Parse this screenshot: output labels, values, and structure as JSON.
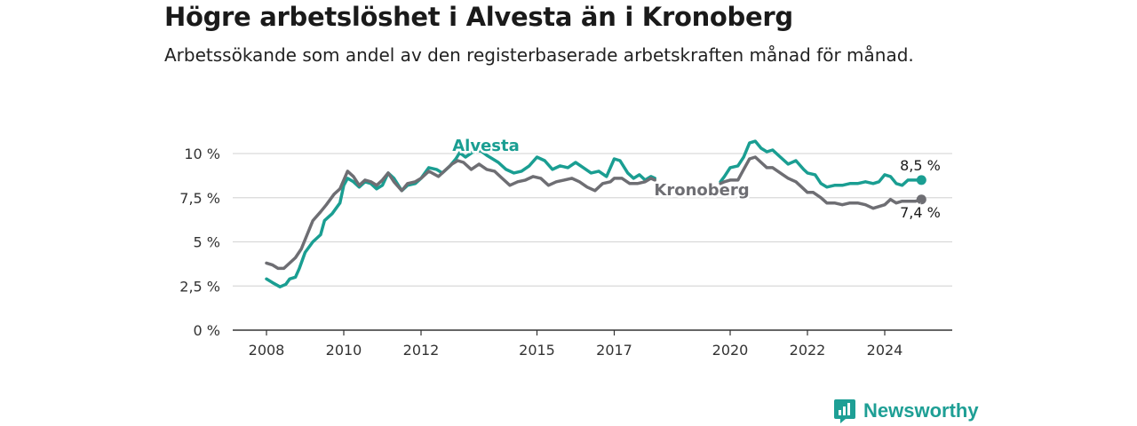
{
  "title": "Högre arbetslöshet i Alvesta än i Kronoberg",
  "subtitle": "Arbetssökande som andel av den registerbaserade arbetskraften månad för månad.",
  "brand": "Newsworthy",
  "chart_data": {
    "type": "line",
    "xlim": [
      2007.4,
      2025.6
    ],
    "ylim": [
      0,
      10
    ],
    "y_ticks": [
      0,
      2.5,
      5,
      7.5,
      10
    ],
    "y_tick_labels": [
      "0 %",
      "2,5 %",
      "5 %",
      "7,5 %",
      "10 %"
    ],
    "x_ticks": [
      2008,
      2010,
      2012,
      2015,
      2017,
      2020,
      2022,
      2024
    ],
    "x_tick_labels": [
      "2008",
      "2010",
      "2012",
      "2015",
      "2017",
      "2020",
      "2022",
      "2024"
    ],
    "grid": "horizontal",
    "series": [
      {
        "name": "Alvesta",
        "color": "#1a9e92",
        "end_label": "8,5 %",
        "points": [
          [
            2008.0,
            2.9
          ],
          [
            2008.15,
            2.7
          ],
          [
            2008.35,
            2.45
          ],
          [
            2008.5,
            2.6
          ],
          [
            2008.6,
            2.9
          ],
          [
            2008.75,
            3.0
          ],
          [
            2008.85,
            3.5
          ],
          [
            2009.0,
            4.4
          ],
          [
            2009.2,
            5.0
          ],
          [
            2009.4,
            5.4
          ],
          [
            2009.5,
            6.2
          ],
          [
            2009.7,
            6.6
          ],
          [
            2009.9,
            7.2
          ],
          [
            2010.0,
            8.2
          ],
          [
            2010.1,
            8.6
          ],
          [
            2010.25,
            8.4
          ],
          [
            2010.4,
            8.1
          ],
          [
            2010.55,
            8.4
          ],
          [
            2010.7,
            8.3
          ],
          [
            2010.85,
            8.0
          ],
          [
            2011.0,
            8.2
          ],
          [
            2011.15,
            8.9
          ],
          [
            2011.3,
            8.6
          ],
          [
            2011.5,
            7.9
          ],
          [
            2011.65,
            8.2
          ],
          [
            2011.85,
            8.3
          ],
          [
            2012.0,
            8.6
          ],
          [
            2012.2,
            9.2
          ],
          [
            2012.4,
            9.1
          ],
          [
            2012.55,
            8.9
          ],
          [
            2012.75,
            9.3
          ],
          [
            2012.9,
            9.7
          ],
          [
            2013.0,
            10.05
          ],
          [
            2013.15,
            9.8
          ],
          [
            2013.35,
            10.1
          ],
          [
            2013.55,
            10.15
          ],
          [
            2013.7,
            9.9
          ],
          [
            2013.85,
            9.7
          ],
          [
            2014.0,
            9.5
          ],
          [
            2014.2,
            9.1
          ],
          [
            2014.4,
            8.9
          ],
          [
            2014.6,
            9.0
          ],
          [
            2014.8,
            9.3
          ],
          [
            2015.0,
            9.8
          ],
          [
            2015.2,
            9.6
          ],
          [
            2015.4,
            9.1
          ],
          [
            2015.6,
            9.3
          ],
          [
            2015.8,
            9.2
          ],
          [
            2016.0,
            9.5
          ],
          [
            2016.2,
            9.2
          ],
          [
            2016.4,
            8.9
          ],
          [
            2016.6,
            9.0
          ],
          [
            2016.8,
            8.7
          ],
          [
            2017.0,
            9.7
          ],
          [
            2017.15,
            9.6
          ],
          [
            2017.35,
            8.9
          ],
          [
            2017.5,
            8.6
          ],
          [
            2017.65,
            8.8
          ],
          [
            2017.8,
            8.5
          ],
          [
            2017.95,
            8.7
          ],
          [
            2018.05,
            8.6
          ],
          null,
          [
            2019.75,
            8.4
          ],
          [
            2019.85,
            8.7
          ],
          [
            2020.0,
            9.2
          ],
          [
            2020.2,
            9.3
          ],
          [
            2020.35,
            9.8
          ],
          [
            2020.5,
            10.6
          ],
          [
            2020.65,
            10.7
          ],
          [
            2020.8,
            10.3
          ],
          [
            2020.95,
            10.1
          ],
          [
            2021.1,
            10.2
          ],
          [
            2021.3,
            9.8
          ],
          [
            2021.5,
            9.4
          ],
          [
            2021.7,
            9.6
          ],
          [
            2021.9,
            9.1
          ],
          [
            2022.0,
            8.9
          ],
          [
            2022.2,
            8.8
          ],
          [
            2022.35,
            8.3
          ],
          [
            2022.5,
            8.1
          ],
          [
            2022.7,
            8.2
          ],
          [
            2022.9,
            8.2
          ],
          [
            2023.1,
            8.3
          ],
          [
            2023.3,
            8.3
          ],
          [
            2023.5,
            8.4
          ],
          [
            2023.7,
            8.3
          ],
          [
            2023.85,
            8.4
          ],
          [
            2024.0,
            8.8
          ],
          [
            2024.15,
            8.7
          ],
          [
            2024.3,
            8.3
          ],
          [
            2024.45,
            8.2
          ],
          [
            2024.6,
            8.5
          ],
          [
            2024.8,
            8.5
          ],
          [
            2024.95,
            8.5
          ]
        ]
      },
      {
        "name": "Kronoberg",
        "color": "#6e6e73",
        "end_label": "7,4 %",
        "points": [
          [
            2008.0,
            3.8
          ],
          [
            2008.15,
            3.7
          ],
          [
            2008.3,
            3.5
          ],
          [
            2008.45,
            3.5
          ],
          [
            2008.6,
            3.8
          ],
          [
            2008.75,
            4.1
          ],
          [
            2008.9,
            4.6
          ],
          [
            2009.05,
            5.4
          ],
          [
            2009.2,
            6.2
          ],
          [
            2009.4,
            6.7
          ],
          [
            2009.55,
            7.1
          ],
          [
            2009.75,
            7.7
          ],
          [
            2009.9,
            8.0
          ],
          [
            2010.0,
            8.5
          ],
          [
            2010.1,
            9.0
          ],
          [
            2010.25,
            8.7
          ],
          [
            2010.4,
            8.2
          ],
          [
            2010.55,
            8.5
          ],
          [
            2010.7,
            8.4
          ],
          [
            2010.85,
            8.2
          ],
          [
            2011.0,
            8.5
          ],
          [
            2011.15,
            8.9
          ],
          [
            2011.3,
            8.4
          ],
          [
            2011.5,
            7.9
          ],
          [
            2011.65,
            8.3
          ],
          [
            2011.85,
            8.4
          ],
          [
            2012.0,
            8.6
          ],
          [
            2012.2,
            9.0
          ],
          [
            2012.45,
            8.7
          ],
          [
            2012.6,
            9.0
          ],
          [
            2012.8,
            9.4
          ],
          [
            2012.95,
            9.6
          ],
          [
            2013.1,
            9.5
          ],
          [
            2013.3,
            9.1
          ],
          [
            2013.5,
            9.4
          ],
          [
            2013.7,
            9.1
          ],
          [
            2013.9,
            9.0
          ],
          [
            2014.1,
            8.6
          ],
          [
            2014.3,
            8.2
          ],
          [
            2014.5,
            8.4
          ],
          [
            2014.7,
            8.5
          ],
          [
            2014.9,
            8.7
          ],
          [
            2015.1,
            8.6
          ],
          [
            2015.3,
            8.2
          ],
          [
            2015.5,
            8.4
          ],
          [
            2015.7,
            8.5
          ],
          [
            2015.9,
            8.6
          ],
          [
            2016.1,
            8.4
          ],
          [
            2016.3,
            8.1
          ],
          [
            2016.5,
            7.9
          ],
          [
            2016.7,
            8.3
          ],
          [
            2016.9,
            8.4
          ],
          [
            2017.0,
            8.6
          ],
          [
            2017.2,
            8.6
          ],
          [
            2017.4,
            8.3
          ],
          [
            2017.6,
            8.3
          ],
          [
            2017.8,
            8.4
          ],
          [
            2017.95,
            8.6
          ],
          [
            2018.05,
            8.5
          ],
          null,
          [
            2019.75,
            8.3
          ],
          [
            2019.85,
            8.4
          ],
          [
            2020.0,
            8.5
          ],
          [
            2020.2,
            8.5
          ],
          [
            2020.35,
            9.1
          ],
          [
            2020.5,
            9.7
          ],
          [
            2020.65,
            9.8
          ],
          [
            2020.8,
            9.5
          ],
          [
            2020.95,
            9.2
          ],
          [
            2021.1,
            9.2
          ],
          [
            2021.3,
            8.9
          ],
          [
            2021.5,
            8.6
          ],
          [
            2021.7,
            8.4
          ],
          [
            2021.9,
            8.0
          ],
          [
            2022.0,
            7.8
          ],
          [
            2022.15,
            7.8
          ],
          [
            2022.35,
            7.5
          ],
          [
            2022.5,
            7.2
          ],
          [
            2022.7,
            7.2
          ],
          [
            2022.9,
            7.1
          ],
          [
            2023.1,
            7.2
          ],
          [
            2023.3,
            7.2
          ],
          [
            2023.5,
            7.1
          ],
          [
            2023.7,
            6.9
          ],
          [
            2023.85,
            7.0
          ],
          [
            2024.0,
            7.1
          ],
          [
            2024.15,
            7.4
          ],
          [
            2024.3,
            7.2
          ],
          [
            2024.45,
            7.3
          ],
          [
            2024.6,
            7.3
          ],
          [
            2024.8,
            7.3
          ],
          [
            2024.95,
            7.4
          ]
        ]
      }
    ]
  }
}
